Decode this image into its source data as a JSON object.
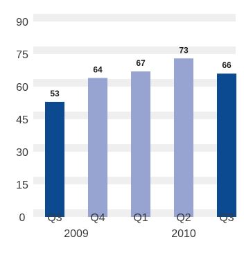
{
  "chart_data": {
    "type": "bar",
    "categories": [
      "Q3",
      "Q4",
      "Q1",
      "Q2",
      "Q3"
    ],
    "groups": [
      "2009",
      "2010"
    ],
    "values": [
      53,
      64,
      67,
      73,
      66
    ],
    "ylim": [
      0,
      90
    ],
    "yticks": [
      "0",
      "15",
      "30",
      "45",
      "60",
      "75",
      "90"
    ],
    "grid": "horizontal bands",
    "colors": {
      "highlight": "#0b4a91",
      "normal": "#97a3d0",
      "band": "#efefef"
    },
    "bar_colors": [
      "highlight",
      "normal",
      "normal",
      "normal",
      "highlight"
    ]
  }
}
